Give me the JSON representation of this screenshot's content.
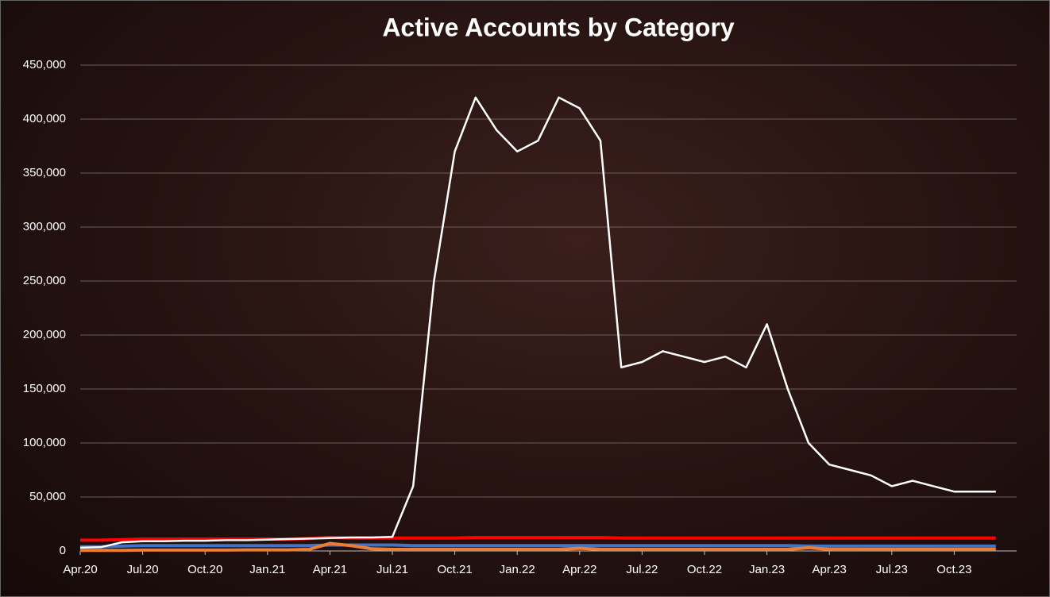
{
  "chart_data": {
    "type": "line",
    "title": "Active Accounts by Category",
    "x": [
      "2020-04",
      "2020-05",
      "2020-06",
      "2020-07",
      "2020-08",
      "2020-09",
      "2020-10",
      "2020-11",
      "2020-12",
      "2021-01",
      "2021-02",
      "2021-03",
      "2021-04",
      "2021-05",
      "2021-06",
      "2021-07",
      "2021-08",
      "2021-09",
      "2021-10",
      "2021-11",
      "2021-12",
      "2022-01",
      "2022-02",
      "2022-03",
      "2022-04",
      "2022-05",
      "2022-06",
      "2022-07",
      "2022-08",
      "2022-09",
      "2022-10",
      "2022-11",
      "2022-12",
      "2023-01",
      "2023-02",
      "2023-03",
      "2023-04",
      "2023-05",
      "2023-06",
      "2023-07",
      "2023-08",
      "2023-09",
      "2023-10",
      "2023-11",
      "2023-12"
    ],
    "xlim": [
      "2020-04",
      "2024-01"
    ],
    "xticks": [
      {
        "value": "2020-04",
        "label": "Apr.20"
      },
      {
        "value": "2020-07",
        "label": "Jul.20"
      },
      {
        "value": "2020-10",
        "label": "Oct.20"
      },
      {
        "value": "2021-01",
        "label": "Jan.21"
      },
      {
        "value": "2021-04",
        "label": "Apr.21"
      },
      {
        "value": "2021-07",
        "label": "Jul.21"
      },
      {
        "value": "2021-10",
        "label": "Oct.21"
      },
      {
        "value": "2022-01",
        "label": "Jan.22"
      },
      {
        "value": "2022-04",
        "label": "Apr.22"
      },
      {
        "value": "2022-07",
        "label": "Jul.22"
      },
      {
        "value": "2022-10",
        "label": "Oct.22"
      },
      {
        "value": "2023-01",
        "label": "Jan.23"
      },
      {
        "value": "2023-04",
        "label": "Apr.23"
      },
      {
        "value": "2023-07",
        "label": "Jul.23"
      },
      {
        "value": "2023-10",
        "label": "Oct.23"
      }
    ],
    "ylim": [
      0,
      450000
    ],
    "yticks": [
      0,
      {
        "value": 50000,
        "label": "50,000"
      },
      {
        "value": 100000,
        "label": "100,000"
      },
      {
        "value": 150000,
        "label": "150,000"
      },
      {
        "value": 200000,
        "label": "200,000"
      },
      {
        "value": 250000,
        "label": "250,000"
      },
      {
        "value": 300000,
        "label": "300,000"
      },
      {
        "value": 350000,
        "label": "350,000"
      },
      {
        "value": 400000,
        "label": "400,000"
      },
      {
        "value": 450000,
        "label": "450,000"
      }
    ],
    "grid": true,
    "series": [
      {
        "color": "#4472c4",
        "values": [
          4000,
          4000,
          4500,
          5000,
          5000,
          5000,
          5000,
          5000,
          5000,
          5000,
          5000,
          5000,
          5500,
          5500,
          5500,
          5500,
          5000,
          5000,
          5000,
          5000,
          5000,
          5000,
          5000,
          5000,
          5000,
          5000,
          5000,
          5000,
          5000,
          5000,
          5000,
          5000,
          5000,
          5000,
          5000,
          4500,
          4500,
          4500,
          4500,
          4500,
          4500,
          4500,
          4500,
          4500,
          4500
        ]
      },
      {
        "color": "#ed7d31",
        "values": [
          500,
          500,
          500,
          800,
          800,
          800,
          800,
          800,
          1000,
          1000,
          1000,
          1500,
          7000,
          5000,
          2000,
          1500,
          1500,
          1500,
          1500,
          1500,
          1500,
          1500,
          1500,
          1500,
          2500,
          1500,
          1500,
          1500,
          1500,
          1500,
          1500,
          1500,
          1500,
          1500,
          1500,
          3000,
          1500,
          1500,
          1500,
          1500,
          1500,
          1500,
          1500,
          1500,
          1500
        ]
      },
      {
        "color": "#ff0000",
        "values": [
          10000,
          10000,
          10500,
          11000,
          11000,
          11000,
          11000,
          11000,
          11000,
          11000,
          11000,
          11500,
          12500,
          12000,
          12000,
          12000,
          12000,
          12000,
          12000,
          12500,
          12500,
          12500,
          12500,
          12500,
          12500,
          12500,
          12000,
          12000,
          12000,
          12000,
          12000,
          12000,
          12000,
          12000,
          12000,
          12000,
          12000,
          12000,
          12000,
          12000,
          12000,
          12000,
          12000,
          12000,
          12000
        ]
      },
      {
        "color": "#ffffff",
        "values": [
          3000,
          3500,
          8000,
          9000,
          9000,
          9500,
          9500,
          10000,
          10000,
          10500,
          11000,
          11500,
          12000,
          12500,
          12500,
          13000,
          60000,
          250000,
          370000,
          420000,
          390000,
          370000,
          380000,
          420000,
          410000,
          380000,
          170000,
          175000,
          185000,
          180000,
          175000,
          180000,
          170000,
          210000,
          150000,
          100000,
          80000,
          75000,
          70000,
          60000,
          65000,
          60000,
          55000,
          55000,
          55000
        ]
      }
    ]
  }
}
